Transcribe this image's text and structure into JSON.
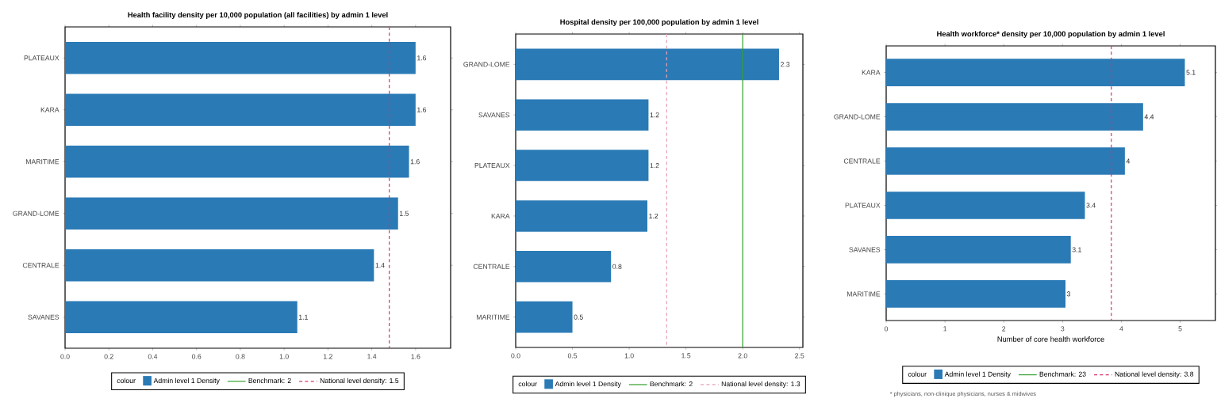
{
  "chart_data": [
    {
      "type": "bar",
      "orientation": "horizontal",
      "title": "Health facility density per 10,000 population (all facilities) by admin 1 level",
      "categories": [
        "PLATEAUX",
        "KARA",
        "MARITIME",
        "GRAND-LOME",
        "CENTRALE",
        "SAVANES"
      ],
      "series": [
        {
          "name": "Admin level 1 Density",
          "color": "#2a7ab5",
          "values": [
            1.6,
            1.6,
            1.57,
            1.52,
            1.41,
            1.06
          ],
          "value_labels": [
            "1.6",
            "1.6",
            "1.6",
            "1.5",
            "1.4",
            "1.1"
          ]
        }
      ],
      "xlim": [
        0,
        1.76
      ],
      "xticks": [
        {
          "value": 0,
          "label": "0.0"
        },
        {
          "value": 0.2,
          "label": "0.2"
        },
        {
          "value": 0.4,
          "label": "0.4"
        },
        {
          "value": 0.6,
          "label": "0.6"
        },
        {
          "value": 0.8,
          "label": "0.8"
        },
        {
          "value": 1,
          "label": "1.0"
        },
        {
          "value": 1.2,
          "label": "1.2"
        },
        {
          "value": 1.4,
          "label": "1.4"
        },
        {
          "value": 1.6,
          "label": "1.6"
        }
      ],
      "ref_lines": [
        {
          "value": null,
          "label": "Benchmark: 2",
          "color": "#33a02c",
          "line_style": "solid"
        },
        {
          "axis": "x",
          "value": 1.48,
          "label": "National level density: 1.5",
          "color": "#d6336c",
          "line_style": "dashed"
        }
      ],
      "legend": "bottom",
      "legend_title": "colour"
    },
    {
      "type": "bar",
      "orientation": "horizontal",
      "title": "Hospital density per 100,000 population by admin 1 level",
      "categories": [
        "GRAND-LOME",
        "SAVANES",
        "PLATEAUX",
        "KARA",
        "CENTRALE",
        "MARITIME"
      ],
      "series": [
        {
          "name": "Admin level 1 Density",
          "color": "#2a7ab5",
          "values": [
            2.32,
            1.17,
            1.17,
            1.16,
            0.84,
            0.5
          ],
          "value_labels": [
            "2.3",
            "1.2",
            "1.2",
            "1.2",
            "0.8",
            "0.5"
          ]
        }
      ],
      "xlim": [
        0,
        2.53
      ],
      "xticks": [
        {
          "value": 0,
          "label": "0.0"
        },
        {
          "value": 0.5,
          "label": "0.5"
        },
        {
          "value": 1,
          "label": "1.0"
        },
        {
          "value": 1.5,
          "label": "1.5"
        },
        {
          "value": 2,
          "label": "2.0"
        },
        {
          "value": 2.5,
          "label": "2.5"
        }
      ],
      "ref_lines": [
        {
          "axis": "x",
          "value": 2,
          "label": "Benchmark: 2",
          "color": "#33a02c",
          "line_style": "solid"
        },
        {
          "axis": "x",
          "value": 1.33,
          "label": "National level density: 1.3",
          "color": "#e8a0b4",
          "line_style": "dashed"
        }
      ],
      "legend": "bottom",
      "legend_title": "colour"
    },
    {
      "type": "bar",
      "orientation": "horizontal",
      "title": "Health workforce* density per 10,000 population by admin 1 level",
      "xlabel": "Number of core health workforce",
      "categories": [
        "KARA",
        "GRAND-LOME",
        "CENTRALE",
        "PLATEAUX",
        "SAVANES",
        "MARITIME"
      ],
      "series": [
        {
          "name": "Admin level 1 Density",
          "color": "#2a7ab5",
          "values": [
            5.08,
            4.37,
            4.06,
            3.38,
            3.14,
            3.05
          ],
          "value_labels": [
            "5.1",
            "4.4",
            "4",
            "3.4",
            "3.1",
            "3"
          ]
        }
      ],
      "xlim": [
        0,
        5.6
      ],
      "xticks": [
        0,
        1,
        2,
        3,
        4,
        5
      ],
      "ref_lines": [
        {
          "value": null,
          "label": "Benchmark: 23",
          "color": "#33a02c",
          "line_style": "solid"
        },
        {
          "axis": "x",
          "value": 3.83,
          "label": "National level density: 3.8",
          "color": "#d6336c",
          "line_style": "dashed"
        }
      ],
      "legend": "bottom",
      "legend_title": "colour",
      "annotations": [
        "* physicians, non-clinique physicians, nurses & midwives"
      ]
    }
  ]
}
